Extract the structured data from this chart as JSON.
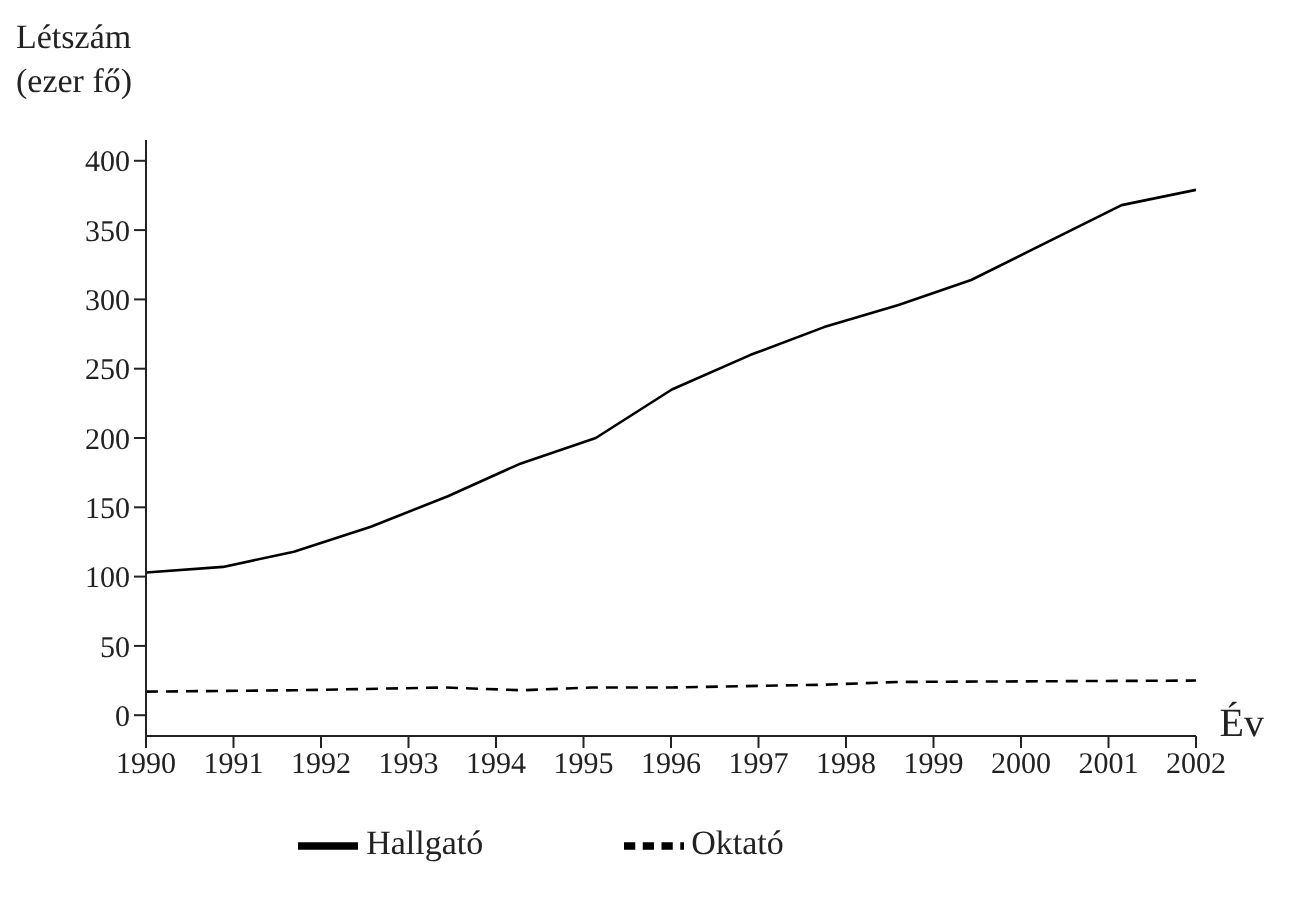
{
  "chart_data": {
    "type": "line",
    "xlabel": "Év",
    "ylabel": "Létszám (ezer fő)",
    "xlim": [
      1990,
      2002
    ],
    "xticks": [
      1990,
      1991,
      1992,
      1993,
      1994,
      1995,
      1996,
      1997,
      1998,
      1999,
      2000,
      2001,
      2002
    ],
    "ylim": [
      -15,
      415
    ],
    "yticks": [
      0,
      50,
      100,
      150,
      200,
      250,
      300,
      350,
      400
    ],
    "grid": false,
    "legend": "bottom",
    "marker": "none",
    "series": [
      {
        "name": "Hallgató",
        "color": "#000000",
        "line_style": "solid",
        "x": [
          1990,
          1990.88,
          1991.69,
          1992.57,
          1993.45,
          1994.26,
          1995.14,
          1996.01,
          1996.91,
          1997.75,
          1998.6,
          1999.43,
          2001.15,
          2002
        ],
        "values": [
          103,
          107,
          118,
          136,
          158,
          181,
          200,
          235,
          260,
          280,
          296,
          314,
          368,
          379
        ]
      },
      {
        "name": "Oktató",
        "color": "#000000",
        "line_style": "dashed",
        "x": [
          1990,
          1991.7,
          1993.4,
          1994.3,
          1995.1,
          1996,
          1997.75,
          1998.6,
          2002
        ],
        "values": [
          17,
          18,
          20,
          18,
          20,
          20,
          22,
          24,
          25
        ]
      }
    ]
  }
}
